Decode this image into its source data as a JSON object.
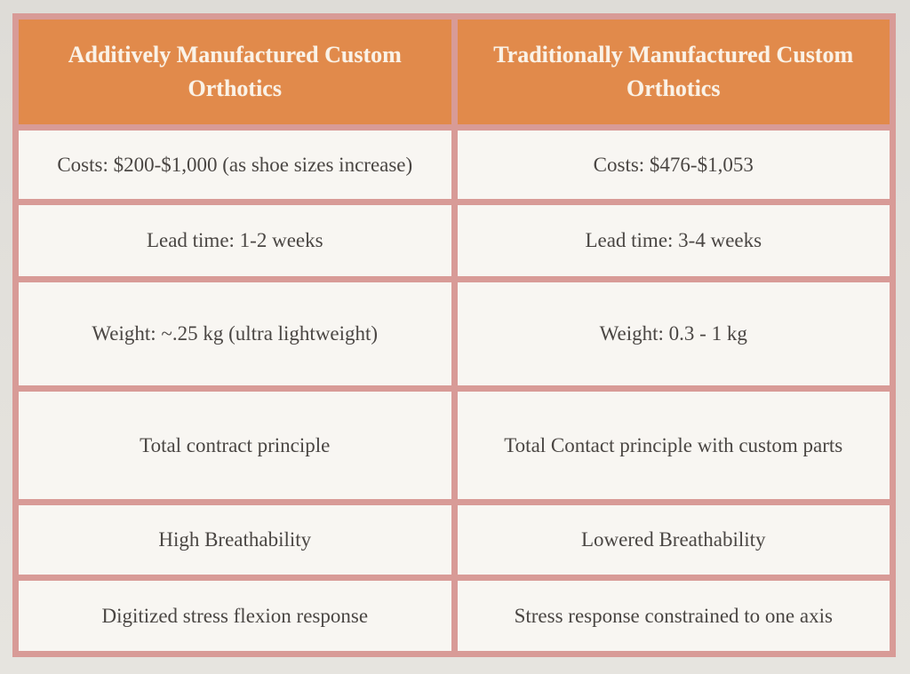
{
  "page": {
    "background_color": "#e0ded9"
  },
  "table": {
    "border_color": "#d89b97",
    "header_bg_color": "#e18a4b",
    "header_text_color": "#faf2e7",
    "cell_bg_color": "#f8f6f2",
    "body_text_color": "#4a4643",
    "columns": [
      {
        "header": "Additively Manufactured Custom Orthotics"
      },
      {
        "header": "Traditionally Manufactured Custom Orthotics"
      }
    ],
    "rows": [
      {
        "left": "Costs: $200-$1,000 (as shoe sizes increase)",
        "right": "Costs: $476-$1,053"
      },
      {
        "left": "Lead time: 1-2 weeks",
        "right": "Lead time: 3-4 weeks"
      },
      {
        "left": "Weight:  ~.25 kg (ultra lightweight)",
        "right": "Weight: 0.3 - 1 kg"
      },
      {
        "left": "Total contract principle",
        "right": "Total Contact principle with custom parts"
      },
      {
        "left": "High Breathability",
        "right": "Lowered Breathability"
      },
      {
        "left": "Digitized stress flexion response",
        "right": "Stress response constrained to one axis"
      }
    ]
  }
}
